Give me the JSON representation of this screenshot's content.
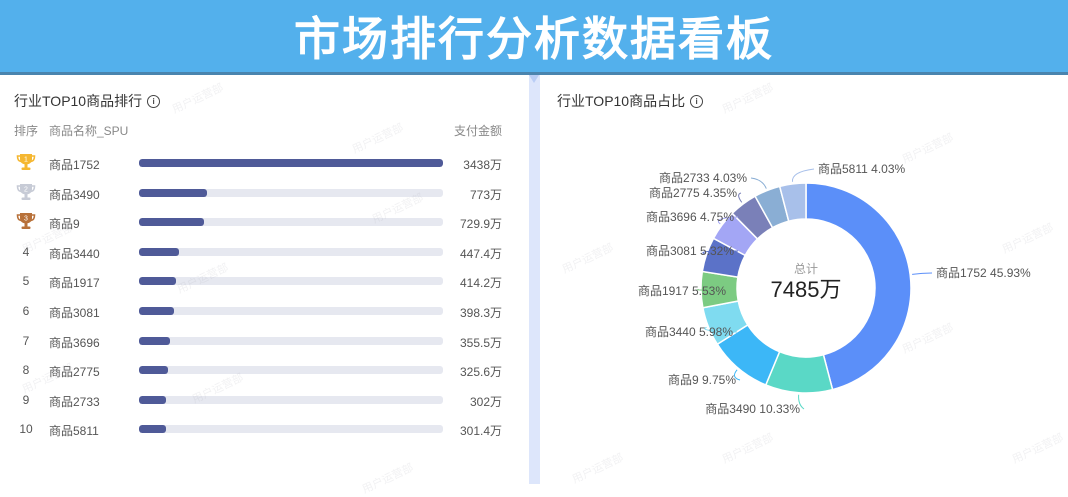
{
  "header": {
    "title": "市场排行分析数据看板"
  },
  "left_panel": {
    "title": "行业TOP10商品排行",
    "info_icon": "info-icon",
    "columns": {
      "rank": "排序",
      "name": "商品名称_SPU",
      "amount": "支付金额"
    },
    "rows": [
      {
        "rank": "1",
        "name": "商品1752",
        "amount": "3438万",
        "value": 3438,
        "badge": "gold-trophy"
      },
      {
        "rank": "2",
        "name": "商品3490",
        "amount": "773万",
        "value": 773,
        "badge": "silver-trophy"
      },
      {
        "rank": "3",
        "name": "商品9",
        "amount": "729.9万",
        "value": 729.9,
        "badge": "bronze-trophy"
      },
      {
        "rank": "4",
        "name": "商品3440",
        "amount": "447.4万",
        "value": 447.4
      },
      {
        "rank": "5",
        "name": "商品1917",
        "amount": "414.2万",
        "value": 414.2
      },
      {
        "rank": "6",
        "name": "商品3081",
        "amount": "398.3万",
        "value": 398.3
      },
      {
        "rank": "7",
        "name": "商品3696",
        "amount": "355.5万",
        "value": 355.5
      },
      {
        "rank": "8",
        "name": "商品2775",
        "amount": "325.6万",
        "value": 325.6
      },
      {
        "rank": "9",
        "name": "商品2733",
        "amount": "302万",
        "value": 302
      },
      {
        "rank": "10",
        "name": "商品5811",
        "amount": "301.4万",
        "value": 301.4
      }
    ]
  },
  "right_panel": {
    "title": "行业TOP10商品占比",
    "info_icon": "info-icon",
    "center_label": "总计",
    "center_value": "7485万"
  },
  "watermark_text": "用户运营部",
  "colors": {
    "header_bg": "#53b0ec",
    "bar_fill": "#4f5a98",
    "bar_track": "#e6e8f0",
    "gold": "#f5b731",
    "silver": "#c7cbd6",
    "bronze": "#b8713a"
  },
  "chart_data": [
    {
      "type": "bar",
      "orientation": "horizontal",
      "title": "行业TOP10商品排行",
      "categories": [
        "商品1752",
        "商品3490",
        "商品9",
        "商品3440",
        "商品1917",
        "商品3081",
        "商品3696",
        "商品2775",
        "商品2733",
        "商品5811"
      ],
      "values": [
        3438,
        773,
        729.9,
        447.4,
        414.2,
        398.3,
        355.5,
        325.6,
        302,
        301.4
      ],
      "unit": "万",
      "xlabel": "支付金额",
      "ylabel": "商品名称_SPU"
    },
    {
      "type": "pie",
      "donut": true,
      "title": "行业TOP10商品占比",
      "total_label": "总计",
      "total": "7485万",
      "categories": [
        "商品1752",
        "商品3490",
        "商品9",
        "商品3440",
        "商品1917",
        "商品3081",
        "商品3696",
        "商品2775",
        "商品2733",
        "商品5811"
      ],
      "values": [
        45.93,
        10.33,
        9.75,
        5.98,
        5.53,
        5.32,
        4.75,
        4.35,
        4.03,
        4.03
      ],
      "unit": "%",
      "colors": [
        "#5b8ff9",
        "#5ad8c6",
        "#3cb7f7",
        "#7fdbf0",
        "#7ccb82",
        "#5b72c8",
        "#a3a6f5",
        "#7a80b8",
        "#8aaed4",
        "#a8c0ea"
      ],
      "labels": [
        "商品1752 45.93%",
        "商品3490 10.33%",
        "商品9 9.75%",
        "商品3440 5.98%",
        "商品1917 5.53%",
        "商品3081 5.32%",
        "商品3696 4.75%",
        "商品2775 4.35%",
        "商品2733 4.03%",
        "商品5811 4.03%"
      ]
    }
  ]
}
